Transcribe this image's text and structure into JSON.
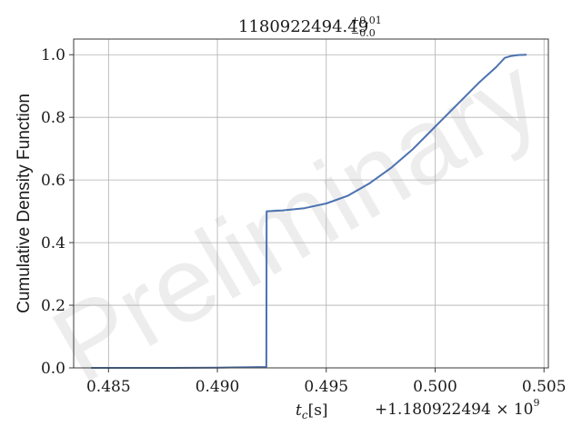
{
  "chart_data": {
    "type": "line",
    "title": {
      "value": "1180922494.49",
      "upper": "+0.01",
      "lower": "−0.0"
    },
    "xlabel": {
      "symbol": "t",
      "subscript": "c",
      "unit": "[s]"
    },
    "ylabel": "Cumulative Density Function",
    "x_offset": {
      "text": "+1.180922494 × 10",
      "exponent": "9"
    },
    "watermark": "Preliminary",
    "xlim": [
      0.4834,
      0.5052
    ],
    "ylim": [
      0.0,
      1.05
    ],
    "x_ticks": [
      0.485,
      0.49,
      0.495,
      0.5,
      0.505
    ],
    "x_tick_labels": [
      "0.485",
      "0.490",
      "0.495",
      "0.500",
      "0.505"
    ],
    "y_ticks": [
      0.0,
      0.2,
      0.4,
      0.6,
      0.8,
      1.0
    ],
    "y_tick_labels": [
      "0.0",
      "0.2",
      "0.4",
      "0.6",
      "0.8",
      "1.0"
    ],
    "grid": true,
    "line_color": "#4c72b0",
    "series": [
      {
        "x": [
          0.4842,
          0.486,
          0.488,
          0.49,
          0.4915,
          0.49225,
          0.49226,
          0.493,
          0.494,
          0.495,
          0.496,
          0.497,
          0.498,
          0.499,
          0.5,
          0.501,
          0.502,
          0.5028,
          0.5032,
          0.5035,
          0.5038,
          0.5042
        ],
        "y": [
          0.0,
          0.0,
          0.0,
          0.001,
          0.002,
          0.003,
          0.5,
          0.503,
          0.51,
          0.525,
          0.55,
          0.59,
          0.64,
          0.7,
          0.77,
          0.84,
          0.91,
          0.96,
          0.99,
          0.996,
          0.999,
          1.0
        ]
      }
    ]
  }
}
